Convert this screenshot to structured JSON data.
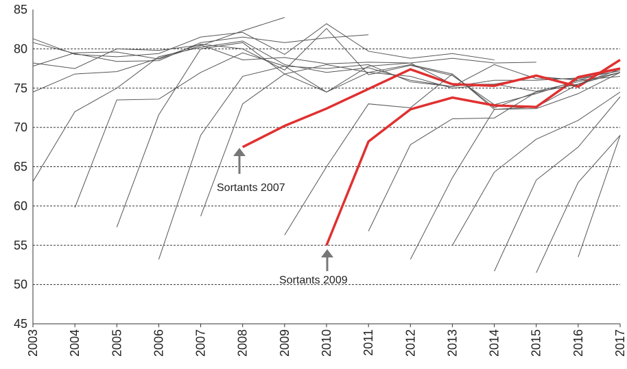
{
  "chart_data": {
    "type": "line",
    "x": [
      2003,
      2004,
      2005,
      2006,
      2007,
      2008,
      2009,
      2010,
      2011,
      2012,
      2013,
      2014,
      2015,
      2016,
      2017
    ],
    "xlim": [
      2003,
      2017
    ],
    "xticks": [
      2003,
      2004,
      2005,
      2006,
      2007,
      2008,
      2009,
      2010,
      2011,
      2012,
      2013,
      2014,
      2015,
      2016,
      2017
    ],
    "ylim": [
      45,
      85
    ],
    "yticks": [
      45,
      50,
      55,
      60,
      65,
      70,
      75,
      80,
      85
    ],
    "grid": true,
    "annotations": [
      "Sortants 2007",
      "Sortants 2009"
    ],
    "series": [
      {
        "color": "#555555",
        "values": [
          81.3,
          79.3,
          79.0,
          79.4,
          81.5,
          82.1,
          79.3,
          83.2,
          79.7,
          78.8,
          79.4,
          78.6,
          null,
          null,
          null
        ]
      },
      {
        "color": "#555555",
        "values": [
          80.8,
          79.4,
          78.4,
          78.5,
          80.8,
          81.5,
          80.8,
          81.4,
          81.8,
          null,
          null,
          null,
          null,
          null,
          null
        ]
      },
      {
        "color": "#555555",
        "values": [
          78.2,
          77.5,
          80.0,
          79.8,
          80.5,
          78.6,
          78.9,
          78.1,
          78.3,
          78.2,
          78.8,
          78.2,
          78.3,
          null,
          null
        ]
      },
      {
        "color": "#555555",
        "values": [
          77.8,
          79.5,
          79.6,
          78.7,
          80.4,
          82.3,
          84.0,
          null,
          null,
          null,
          null,
          null,
          null,
          null,
          null
        ]
      },
      {
        "color": "#555555",
        "values": [
          74.5,
          76.8,
          77.1,
          78.8,
          80.6,
          80.0,
          77.3,
          82.6,
          76.7,
          77.9,
          76.6,
          72.9,
          74.3,
          76.0,
          76.5
        ]
      },
      {
        "color": "#555555",
        "values": [
          63.1,
          72.0,
          75.0,
          79.0,
          80.2,
          81.0,
          78.0,
          77.0,
          77.6,
          76.0,
          75.2,
          78.0,
          76.2,
          76.2,
          77.2
        ]
      },
      {
        "color": "#555555",
        "values": [
          null,
          59.8,
          73.5,
          73.6,
          77.0,
          79.5,
          77.8,
          74.5,
          77.8,
          78.2,
          75.5,
          75.5,
          74.6,
          75.8,
          77.0
        ]
      },
      {
        "color": "#555555",
        "values": [
          null,
          null,
          57.3,
          71.6,
          80.0,
          80.8,
          76.8,
          78.0,
          77.0,
          76.5,
          75.0,
          75.5,
          76.5,
          76.0,
          77.5
        ]
      },
      {
        "color": "#555555",
        "values": [
          null,
          null,
          null,
          53.2,
          69.0,
          76.5,
          77.8,
          77.5,
          78.0,
          75.8,
          75.2,
          76.0,
          76.0,
          76.3,
          77.4
        ]
      },
      {
        "color": "#555555",
        "values": [
          null,
          null,
          null,
          null,
          58.7,
          73.0,
          76.8,
          74.5,
          77.0,
          78.0,
          76.8,
          72.5,
          74.5,
          75.5,
          77.0
        ]
      },
      {
        "color": "#e03030",
        "values": [
          null,
          null,
          null,
          null,
          null,
          67.5,
          70.2,
          72.4,
          74.9,
          77.4,
          75.5,
          75.3,
          76.6,
          75.2,
          78.6
        ]
      },
      {
        "color": "#555555",
        "values": [
          null,
          null,
          null,
          null,
          null,
          null,
          56.3,
          65.0,
          73.0,
          72.5,
          76.8,
          72.3,
          72.6,
          75.5,
          77.4
        ]
      },
      {
        "color": "#e03030",
        "values": [
          null,
          null,
          null,
          null,
          null,
          null,
          null,
          55.0,
          68.2,
          72.3,
          73.8,
          72.8,
          72.6,
          76.4,
          77.5
        ]
      },
      {
        "color": "#555555",
        "values": [
          null,
          null,
          null,
          null,
          null,
          null,
          null,
          null,
          56.8,
          67.8,
          71.1,
          71.2,
          74.5,
          75.5,
          77.0
        ]
      },
      {
        "color": "#555555",
        "values": [
          null,
          null,
          null,
          null,
          null,
          null,
          null,
          null,
          null,
          53.2,
          63.6,
          72.3,
          72.4,
          74.3,
          77.0
        ]
      },
      {
        "color": "#555555",
        "values": [
          null,
          null,
          null,
          null,
          null,
          null,
          null,
          null,
          null,
          null,
          55.0,
          64.3,
          68.5,
          70.9,
          74.5
        ]
      },
      {
        "color": "#555555",
        "values": [
          null,
          null,
          null,
          null,
          null,
          null,
          null,
          null,
          null,
          null,
          null,
          51.7,
          63.3,
          67.5,
          73.9
        ]
      },
      {
        "color": "#555555",
        "values": [
          null,
          null,
          null,
          null,
          null,
          null,
          null,
          null,
          null,
          null,
          null,
          null,
          51.5,
          63.0,
          69.0
        ]
      },
      {
        "color": "#555555",
        "values": [
          null,
          null,
          null,
          null,
          null,
          null,
          null,
          null,
          null,
          null,
          null,
          null,
          null,
          53.5,
          69.0
        ]
      }
    ]
  }
}
